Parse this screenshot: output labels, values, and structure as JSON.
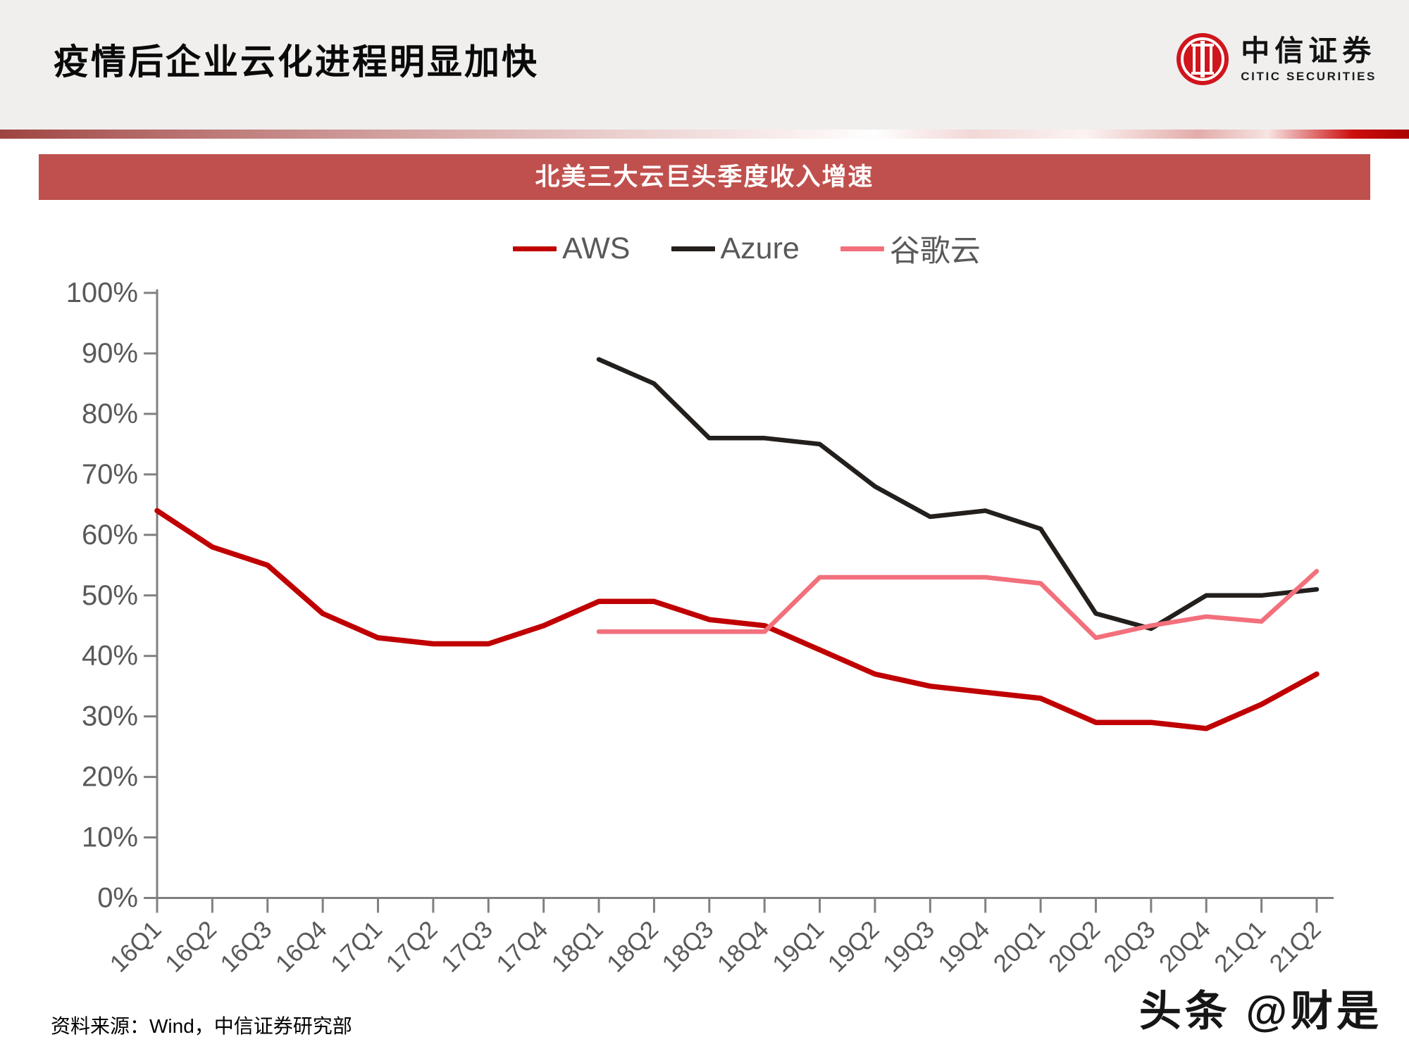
{
  "header": {
    "title": "疫情后企业云化进程明显加快",
    "logo_cn": "中信证券",
    "logo_en": "CITIC SECURITIES"
  },
  "footer": {
    "source_note": "资料来源：Wind，中信证券研究部",
    "watermark": "头条 @财是"
  },
  "colors": {
    "header_bg": "#f0efee",
    "banner_bg": "#c0504d",
    "axis": "#808080",
    "tick_label": "#595959",
    "logo_red": "#d0151c"
  },
  "chart_data": {
    "type": "line",
    "title": "北美三大云巨头季度收入增速",
    "categories": [
      "16Q1",
      "16Q2",
      "16Q3",
      "16Q4",
      "17Q1",
      "17Q2",
      "17Q3",
      "17Q4",
      "18Q1",
      "18Q2",
      "18Q3",
      "18Q4",
      "19Q1",
      "19Q2",
      "19Q3",
      "19Q4",
      "20Q1",
      "20Q2",
      "20Q3",
      "20Q4",
      "21Q1",
      "21Q2"
    ],
    "ylabel": "",
    "xlabel": "",
    "ylim": [
      0,
      100
    ],
    "ytick_step": 10,
    "ytick_suffix": "%",
    "grid": false,
    "legend_position": "top",
    "series": [
      {
        "name": "AWS",
        "color": "#c00000",
        "values": [
          64,
          58,
          55,
          47,
          43,
          42,
          42,
          45,
          49,
          49,
          46,
          45,
          41,
          37,
          35,
          34,
          33,
          29,
          29,
          28,
          32,
          37
        ]
      },
      {
        "name": "Azure",
        "color": "#231f1c",
        "values": [
          null,
          null,
          null,
          null,
          null,
          null,
          null,
          null,
          89,
          85,
          76,
          76,
          75,
          68,
          63,
          64,
          61,
          47,
          44.5,
          50,
          50,
          51
        ]
      },
      {
        "name": "谷歌云",
        "color": "#f2707c",
        "values": [
          null,
          null,
          null,
          null,
          null,
          null,
          null,
          null,
          44,
          44,
          44,
          44,
          53,
          53,
          53,
          53,
          52,
          43,
          45,
          46.5,
          45.7,
          54
        ]
      }
    ]
  }
}
